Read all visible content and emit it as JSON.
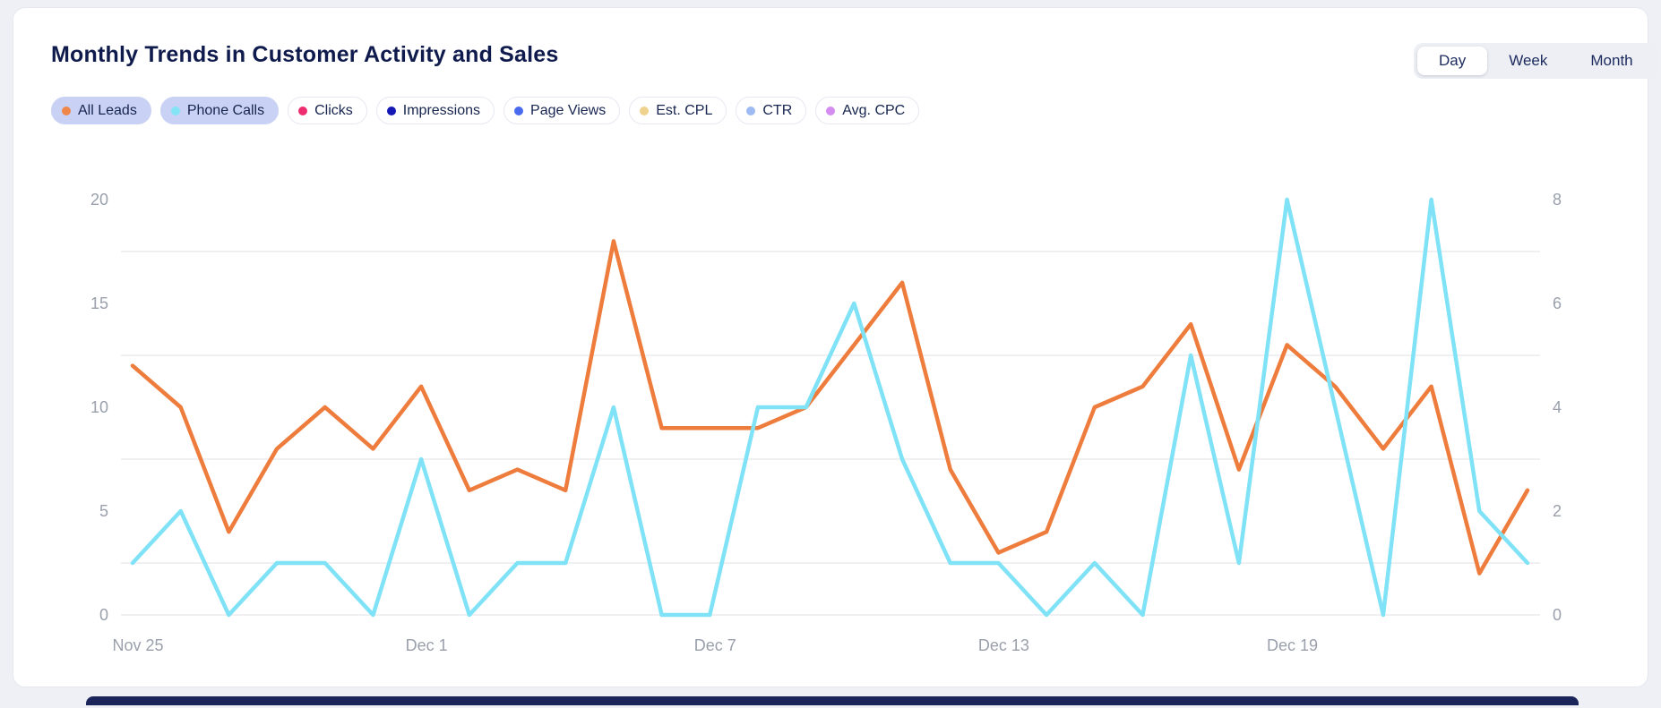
{
  "header": {
    "title": "Monthly Trends in Customer Activity and Sales",
    "range_toggle": {
      "options": [
        "Day",
        "Week",
        "Month"
      ],
      "selected": "Day"
    }
  },
  "legend": {
    "chips": [
      {
        "label": "All Leads",
        "dot_color": "#f0874a",
        "active": true
      },
      {
        "label": "Phone Calls",
        "dot_color": "#84e4f6",
        "active": true
      },
      {
        "label": "Clicks",
        "dot_color": "#ee2d70",
        "active": false
      },
      {
        "label": "Impressions",
        "dot_color": "#1418b4",
        "active": false
      },
      {
        "label": "Page Views",
        "dot_color": "#4b6bef",
        "active": false
      },
      {
        "label": "Est. CPL",
        "dot_color": "#efd28d",
        "active": false
      },
      {
        "label": "CTR",
        "dot_color": "#9dbbf2",
        "active": false
      },
      {
        "label": "Avg. CPC",
        "dot_color": "#d48cf0",
        "active": false
      }
    ]
  },
  "chart_data": {
    "type": "line",
    "x": [
      "Nov 25",
      "Nov 26",
      "Nov 27",
      "Nov 28",
      "Nov 29",
      "Nov 30",
      "Dec 1",
      "Dec 2",
      "Dec 3",
      "Dec 4",
      "Dec 5",
      "Dec 6",
      "Dec 7",
      "Dec 8",
      "Dec 9",
      "Dec 10",
      "Dec 11",
      "Dec 12",
      "Dec 13",
      "Dec 14",
      "Dec 15",
      "Dec 16",
      "Dec 17",
      "Dec 18",
      "Dec 19",
      "Dec 20",
      "Dec 21",
      "Dec 22",
      "Dec 23",
      "Dec 24"
    ],
    "x_tick_labels": [
      "Nov 25",
      "Dec 1",
      "Dec 7",
      "Dec 13",
      "Dec 19"
    ],
    "x_tick_indices": [
      0,
      6,
      12,
      18,
      24
    ],
    "series": [
      {
        "name": "All Leads",
        "axis": "left",
        "color": "#ee7c3c",
        "values": [
          12,
          10,
          4,
          8,
          10,
          8,
          11,
          6,
          7,
          6,
          18,
          9,
          9,
          9,
          10,
          13,
          16,
          7,
          3,
          4,
          10,
          11,
          14,
          7,
          13,
          11,
          8,
          11,
          2,
          6
        ]
      },
      {
        "name": "Phone Calls",
        "axis": "right",
        "color": "#7fe2f6",
        "values": [
          1,
          2,
          0,
          1,
          1,
          0,
          3,
          0,
          1,
          1,
          4,
          0,
          0,
          4,
          4,
          6,
          3,
          1,
          1,
          0,
          1,
          0,
          5,
          1,
          8,
          4,
          0,
          8,
          2,
          1
        ]
      }
    ],
    "left_axis": {
      "ticks": [
        0,
        5,
        10,
        15,
        20
      ],
      "min": 0,
      "max": 20
    },
    "right_axis": {
      "ticks": [
        0,
        2,
        4,
        6,
        8
      ],
      "min": 0,
      "max": 8
    },
    "gridlines_left_values": [
      17.5,
      12.5,
      7.5,
      2.5,
      0
    ],
    "grid": true,
    "legend_position": "top-left",
    "title": "Monthly Trends in Customer Activity and Sales"
  },
  "colors": {
    "grid_line": "#ebebef",
    "axis_label": "#9aa0ab",
    "accent_navy": "#101b4d",
    "active_chip_bg": "#c9d2f5"
  }
}
